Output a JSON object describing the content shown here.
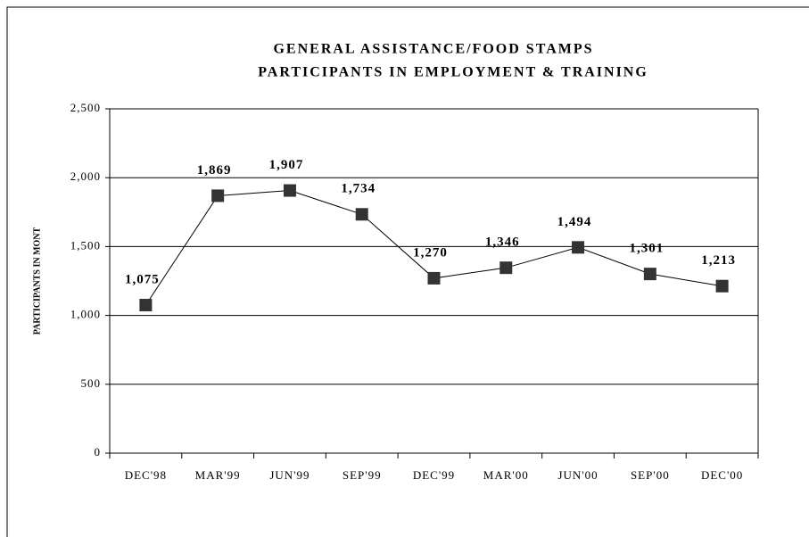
{
  "chart_data": {
    "type": "line",
    "title": [
      "GENERAL ASSISTANCE/FOOD STAMPS",
      "PARTICIPANTS IN EMPLOYMENT & TRAINING"
    ],
    "y_label": "PARTICIPANTS IN MONT",
    "categories": [
      "DEC'98",
      "MAR'99",
      "JUN'99",
      "SEP'99",
      "DEC'99",
      "MAR'00",
      "JUN'00",
      "SEP'00",
      "DEC'00"
    ],
    "series": [
      {
        "name": "Participants",
        "color": "#333333",
        "values": [
          1075,
          1869,
          1907,
          1734,
          1270,
          1346,
          1494,
          1301,
          1213
        ],
        "value_labels": [
          "1,075",
          "1,869",
          "1,907",
          "1,734",
          "1,270",
          "1,346",
          "1,494",
          "1,301",
          "1,213"
        ]
      }
    ],
    "ylim": [
      0,
      2500
    ],
    "yticks": [
      0,
      500,
      {
        "value": 1000,
        "label": "1,000"
      },
      {
        "value": 1500,
        "label": "1,500"
      },
      {
        "value": 2000,
        "label": "2,000"
      },
      {
        "value": 2500,
        "label": "2,500"
      }
    ],
    "grid": true
  }
}
